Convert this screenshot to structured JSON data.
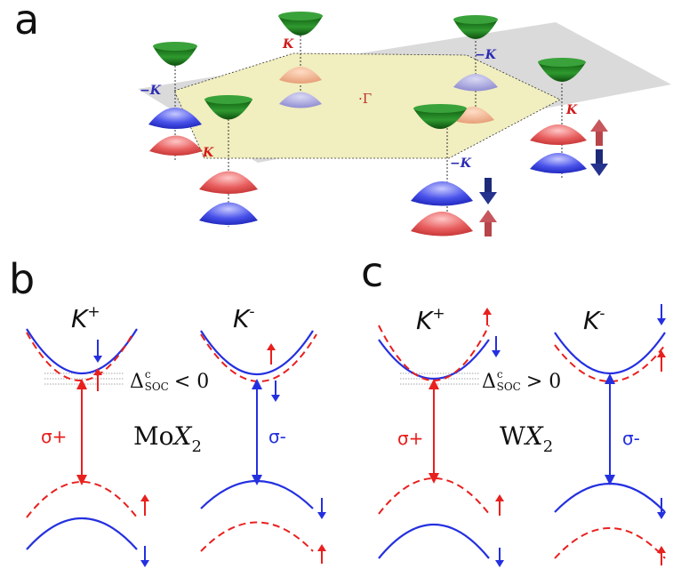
{
  "colors": {
    "red": "#e8201e",
    "blue": "#2430e0",
    "green": "#1d7a1d",
    "plane": "#d9d9d9",
    "hexagon": "#f1eebf",
    "arrow_up": "#b8454a",
    "arrow_down": "#1e2a78",
    "k_label_red": "#d11a1a",
    "k_label_blue": "#2b2bb3"
  },
  "panel_a": {
    "letter": "a",
    "gamma_label": "·Γ",
    "valley_labels": {
      "k_plus": "K",
      "k_minus": "−K"
    },
    "spin_arrows": [
      "spin-up",
      "spin-down"
    ]
  },
  "panel_b": {
    "letter": "b",
    "k_left": "K",
    "k_left_sup": "+",
    "k_right": "K",
    "k_right_sup": "-",
    "sigma_left": "σ+",
    "sigma_right": "σ-",
    "delta_text": "Δ",
    "delta_sup": "c",
    "delta_sub": "SOC",
    "delta_rel": "< 0",
    "formula_metal": "Mo",
    "formula_x": "X",
    "formula_sub": "2"
  },
  "panel_c": {
    "letter": "c",
    "k_left": "K",
    "k_left_sup": "+",
    "k_right": "K",
    "k_right_sup": "-",
    "sigma_left": "σ+",
    "sigma_right": "σ-",
    "delta_text": "Δ",
    "delta_sup": "c",
    "delta_sub": "SOC",
    "delta_rel": "> 0",
    "formula_metal": "W",
    "formula_x": "X",
    "formula_sub": "2"
  }
}
